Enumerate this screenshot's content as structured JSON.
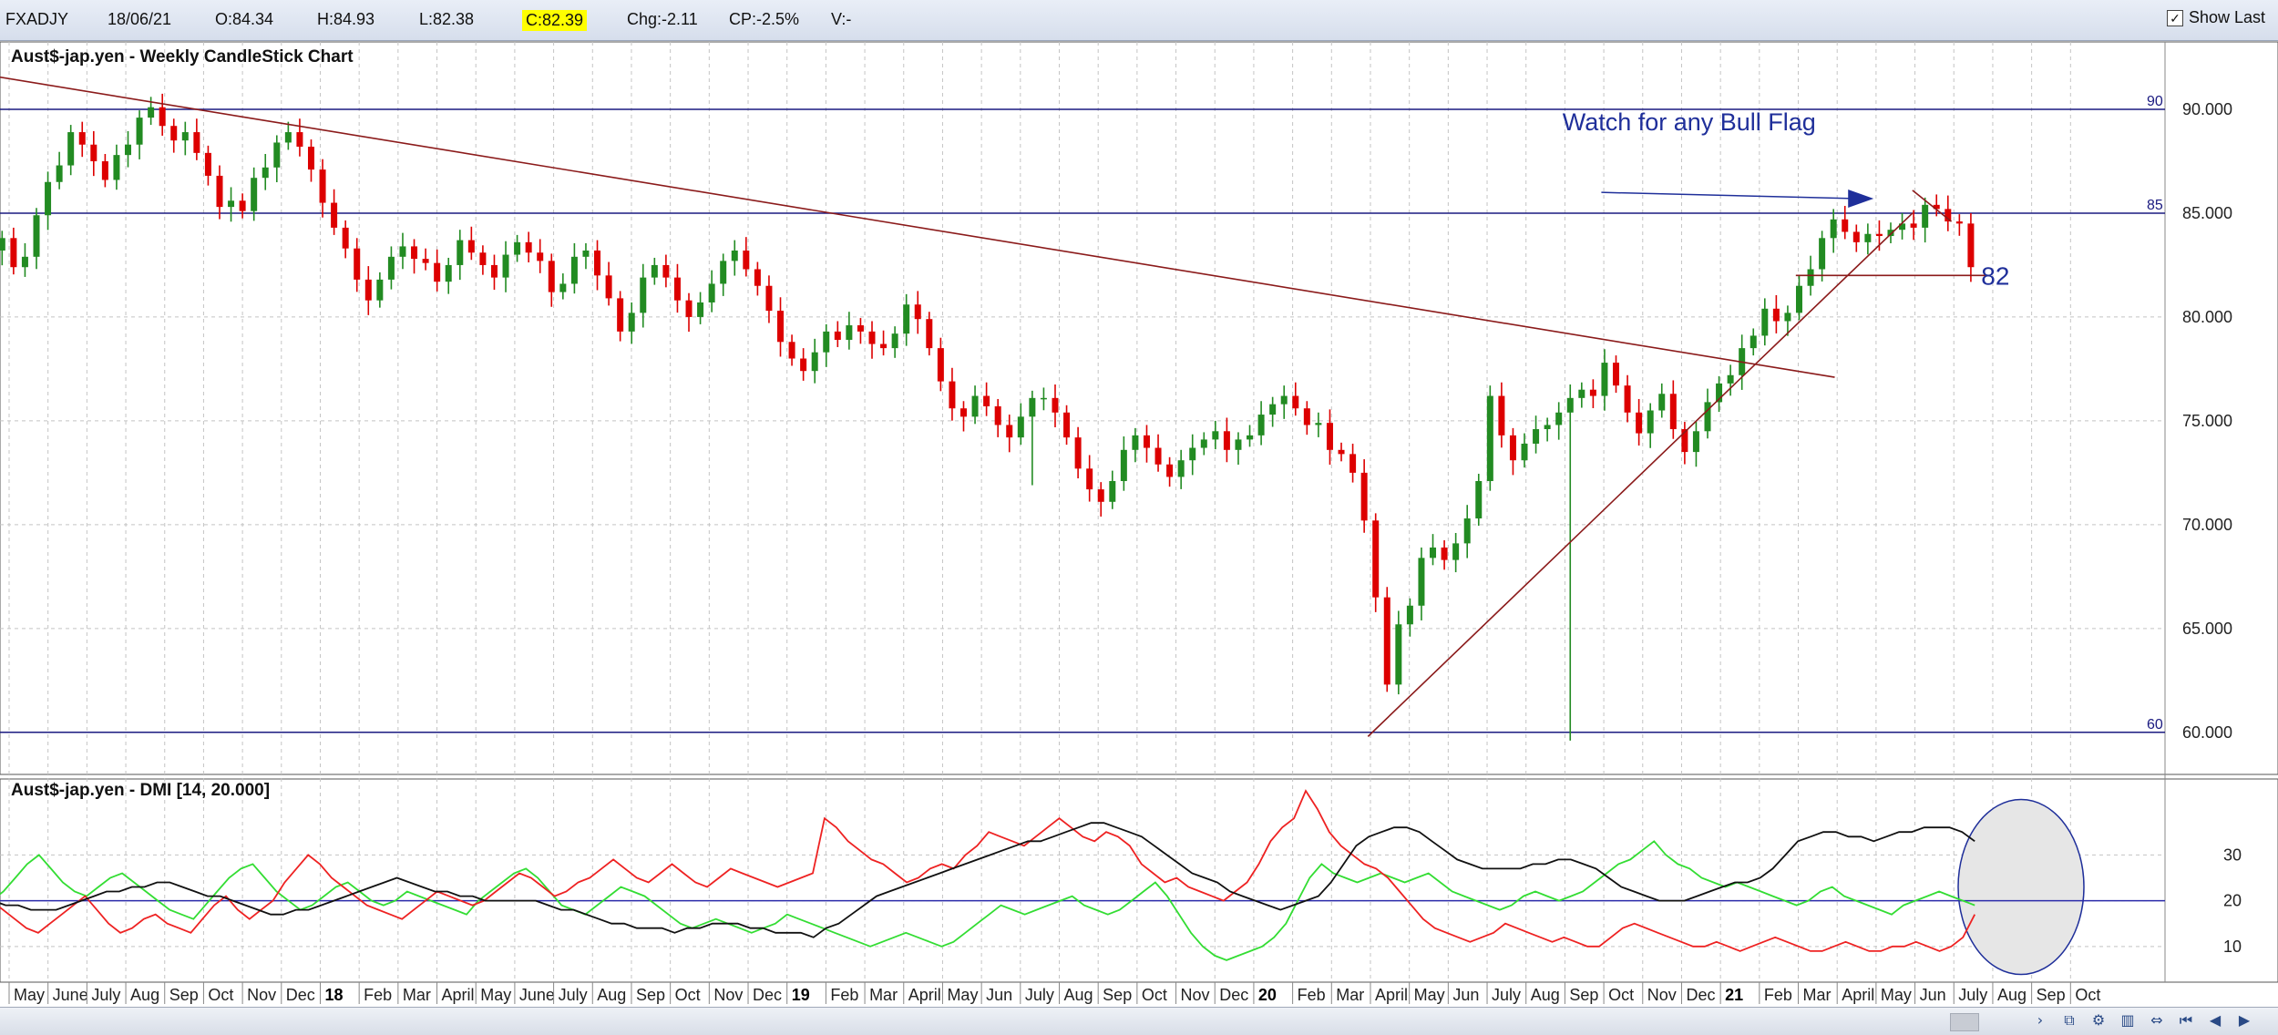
{
  "toolbar": {
    "symbol": "FXADJY",
    "date": "18/06/21",
    "open": "O:84.34",
    "high": "H:84.93",
    "low": "L:82.38",
    "close": "C:82.39",
    "change": "Chg:-2.11",
    "change_pct": "CP:-2.5%",
    "volume": "V:-",
    "show_last_label": "Show Last",
    "show_last_checked": true,
    "highlight_color": "#ffff00"
  },
  "chart_data": [
    {
      "type": "candlestick",
      "title": "Aust$-jap.yen - Weekly CandleStick Chart",
      "ylim": [
        58.5,
        92.5
      ],
      "y_ticks": [
        "60.000",
        "65.000",
        "70.000",
        "75.000",
        "80.000",
        "85.000",
        "90.000"
      ],
      "x_ticks": [
        {
          "label": "May",
          "date": "2017-05"
        },
        {
          "label": "June",
          "date": "2017-06"
        },
        {
          "label": "July",
          "date": "2017-07"
        },
        {
          "label": "Aug",
          "date": "2017-08"
        },
        {
          "label": "Sep",
          "date": "2017-09"
        },
        {
          "label": "Oct",
          "date": "2017-10"
        },
        {
          "label": "Nov",
          "date": "2017-11"
        },
        {
          "label": "Dec",
          "date": "2017-12"
        },
        {
          "label": "18",
          "date": "2018-01",
          "bold": true
        },
        {
          "label": "Feb",
          "date": "2018-02"
        },
        {
          "label": "Mar",
          "date": "2018-03"
        },
        {
          "label": "April",
          "date": "2018-04"
        },
        {
          "label": "May",
          "date": "2018-05"
        },
        {
          "label": "June",
          "date": "2018-06"
        },
        {
          "label": "July",
          "date": "2018-07"
        },
        {
          "label": "Aug",
          "date": "2018-08"
        },
        {
          "label": "Sep",
          "date": "2018-09"
        },
        {
          "label": "Oct",
          "date": "2018-10"
        },
        {
          "label": "Nov",
          "date": "2018-11"
        },
        {
          "label": "Dec",
          "date": "2018-12"
        },
        {
          "label": "19",
          "date": "2019-01",
          "bold": true
        },
        {
          "label": "Feb",
          "date": "2019-02"
        },
        {
          "label": "Mar",
          "date": "2019-03"
        },
        {
          "label": "April",
          "date": "2019-04"
        },
        {
          "label": "May",
          "date": "2019-05"
        },
        {
          "label": "Jun",
          "date": "2019-06"
        },
        {
          "label": "July",
          "date": "2019-07"
        },
        {
          "label": "Aug",
          "date": "2019-08"
        },
        {
          "label": "Sep",
          "date": "2019-09"
        },
        {
          "label": "Oct",
          "date": "2019-10"
        },
        {
          "label": "Nov",
          "date": "2019-11"
        },
        {
          "label": "Dec",
          "date": "2019-12"
        },
        {
          "label": "20",
          "date": "2020-01",
          "bold": true
        },
        {
          "label": "Feb",
          "date": "2020-02"
        },
        {
          "label": "Mar",
          "date": "2020-03"
        },
        {
          "label": "April",
          "date": "2020-04"
        },
        {
          "label": "May",
          "date": "2020-05"
        },
        {
          "label": "Jun",
          "date": "2020-06"
        },
        {
          "label": "July",
          "date": "2020-07"
        },
        {
          "label": "Aug",
          "date": "2020-08"
        },
        {
          "label": "Sep",
          "date": "2020-09"
        },
        {
          "label": "Oct",
          "date": "2020-10"
        },
        {
          "label": "Nov",
          "date": "2020-11"
        },
        {
          "label": "Dec",
          "date": "2020-12"
        },
        {
          "label": "21",
          "date": "2021-01",
          "bold": true
        },
        {
          "label": "Feb",
          "date": "2021-02"
        },
        {
          "label": "Mar",
          "date": "2021-03"
        },
        {
          "label": "April",
          "date": "2021-04"
        },
        {
          "label": "May",
          "date": "2021-05"
        },
        {
          "label": "Jun",
          "date": "2021-06"
        },
        {
          "label": "July",
          "date": "2021-07"
        },
        {
          "label": "Aug",
          "date": "2021-08"
        },
        {
          "label": "Sep",
          "date": "2021-09"
        },
        {
          "label": "Oct",
          "date": "2021-10"
        }
      ],
      "up_color": "#228b22",
      "down_color": "#dd0000",
      "closes": [
        82.6,
        83.5,
        83.2,
        83.8,
        82.4,
        82.9,
        84.9,
        86.5,
        87.3,
        88.9,
        88.3,
        87.5,
        86.6,
        87.8,
        88.3,
        89.6,
        90.1,
        89.2,
        88.5,
        88.9,
        87.9,
        86.8,
        85.3,
        85.6,
        85.1,
        86.7,
        87.2,
        88.4,
        88.9,
        88.2,
        87.1,
        85.5,
        84.3,
        83.3,
        81.8,
        80.8,
        81.8,
        82.9,
        83.4,
        82.8,
        82.6,
        81.7,
        82.5,
        83.7,
        83.1,
        82.5,
        81.9,
        83.0,
        83.6,
        83.1,
        82.7,
        81.2,
        81.6,
        82.9,
        83.2,
        82.0,
        80.9,
        79.3,
        80.2,
        81.9,
        82.5,
        81.9,
        80.8,
        80.0,
        80.7,
        81.6,
        82.7,
        83.2,
        82.3,
        81.5,
        80.3,
        78.8,
        78.0,
        77.4,
        78.3,
        79.3,
        78.9,
        79.6,
        79.3,
        78.7,
        78.5,
        79.2,
        80.6,
        79.9,
        78.5,
        76.9,
        75.6,
        75.2,
        76.2,
        75.7,
        74.8,
        74.2,
        75.2,
        76.1,
        76.1,
        75.4,
        74.2,
        72.7,
        71.7,
        71.1,
        72.1,
        73.6,
        74.3,
        73.7,
        72.9,
        72.3,
        73.1,
        73.7,
        74.1,
        74.5,
        73.6,
        74.1,
        74.3,
        75.3,
        75.8,
        76.2,
        75.6,
        74.8,
        74.9,
        73.6,
        73.4,
        72.5,
        70.2,
        66.5,
        62.3,
        65.2,
        66.1,
        68.4,
        68.9,
        68.3,
        69.1,
        70.3,
        72.1,
        76.2,
        74.3,
        73.1,
        73.9,
        74.6,
        74.8,
        75.4,
        76.1,
        76.5,
        76.2,
        77.8,
        76.7,
        75.4,
        74.4,
        75.5,
        76.3,
        74.6,
        73.5,
        74.5,
        75.9,
        76.8,
        77.2,
        78.5,
        79.1,
        80.4,
        79.8,
        80.2,
        81.5,
        82.3,
        83.8,
        84.7,
        84.1,
        83.6,
        84.0,
        83.9,
        84.2,
        84.5,
        84.3,
        85.4,
        85.2,
        84.6,
        84.5,
        82.4
      ],
      "dashed_line_color": "#8b1a1a",
      "lines": [
        {
          "name": "downtrend",
          "points": [
            [
              "2017-03",
              91.8
            ],
            [
              "2021-03",
              77.1
            ]
          ],
          "color": "#8b1a1a"
        },
        {
          "name": "uptrend",
          "points": [
            [
              "2020-03",
              59.8
            ],
            [
              "2021-05",
              85.0
            ]
          ],
          "color": "#8b1a1a"
        },
        {
          "name": "flag-top",
          "points": [
            [
              "2021-05",
              86.1
            ],
            [
              "2021-06",
              84.6
            ]
          ],
          "color": "#8b1a1a"
        },
        {
          "name": "support-82",
          "points": [
            [
              "2021-02",
              82.0
            ],
            [
              "2021-07",
              82.0
            ]
          ],
          "color": "#8b1a1a"
        }
      ],
      "hlines": [
        {
          "value": 90,
          "label": "90",
          "color": "#1a1a80"
        },
        {
          "value": 85,
          "label": "85",
          "color": "#1a1a80"
        },
        {
          "value": 60,
          "label": "60",
          "color": "#1a1a80"
        }
      ],
      "annotations": [
        {
          "text": "Watch for any Bull Flag",
          "at": [
            "2020-08",
            89.0
          ],
          "color": "#1f2f9a"
        },
        {
          "text": "82",
          "at": [
            "2021-07",
            82.0
          ],
          "color": "#1f2f9a"
        }
      ],
      "arrow": {
        "from": [
          "2020-09",
          86.0
        ],
        "to": [
          "2021-04",
          85.7
        ],
        "color": "#1f2f9a"
      }
    },
    {
      "type": "line",
      "title": "Aust$-jap.yen - DMI [14, 20.000]",
      "ylim": [
        3,
        45
      ],
      "y_ticks": [
        "10",
        "20",
        "30"
      ],
      "reference_line": {
        "value": 20,
        "color": "#2a2aaa"
      },
      "series": [
        {
          "name": "+DI",
          "color": "#33dd33"
        },
        {
          "name": "-DI",
          "color": "#ee2222"
        },
        {
          "name": "ADX",
          "color": "#111111"
        }
      ],
      "plus_di": [
        18,
        17,
        20,
        22,
        25,
        28,
        30,
        27,
        24,
        22,
        21,
        23,
        25,
        26,
        24,
        22,
        20,
        18,
        17,
        16,
        19,
        22,
        25,
        27,
        28,
        25,
        22,
        20,
        18,
        19,
        21,
        23,
        24,
        22,
        20,
        19,
        20,
        22,
        21,
        20,
        19,
        18,
        17,
        20,
        22,
        24,
        26,
        27,
        25,
        22,
        19,
        18,
        17,
        19,
        21,
        23,
        22,
        21,
        19,
        17,
        15,
        14,
        15,
        16,
        15,
        14,
        13,
        14,
        15,
        17,
        16,
        15,
        14,
        13,
        12,
        11,
        10,
        11,
        12,
        13,
        12,
        11,
        10,
        11,
        13,
        15,
        17,
        19,
        18,
        17,
        18,
        19,
        20,
        21,
        19,
        18,
        17,
        18,
        20,
        22,
        24,
        21,
        17,
        13,
        10,
        8,
        7,
        8,
        9,
        10,
        12,
        15,
        20,
        25,
        28,
        26,
        25,
        24,
        25,
        26,
        25,
        24,
        25,
        26,
        24,
        22,
        21,
        20,
        19,
        18,
        19,
        21,
        22,
        21,
        20,
        21,
        22,
        24,
        26,
        28,
        29,
        31,
        33,
        30,
        28,
        27,
        25,
        24,
        23,
        24,
        23,
        22,
        21,
        20,
        19,
        20,
        22,
        23,
        21,
        20,
        19,
        18,
        17,
        19,
        20,
        21,
        22,
        21,
        20,
        19
      ],
      "minus_di": [
        19,
        21,
        20,
        18,
        16,
        14,
        13,
        15,
        17,
        19,
        21,
        18,
        15,
        13,
        14,
        16,
        17,
        15,
        14,
        13,
        16,
        19,
        21,
        18,
        16,
        18,
        20,
        24,
        27,
        30,
        28,
        25,
        23,
        21,
        19,
        18,
        17,
        16,
        18,
        20,
        22,
        21,
        20,
        19,
        20,
        22,
        24,
        26,
        25,
        23,
        21,
        22,
        24,
        25,
        27,
        29,
        27,
        25,
        24,
        26,
        28,
        26,
        24,
        23,
        25,
        27,
        26,
        25,
        24,
        23,
        24,
        25,
        26,
        38,
        36,
        33,
        31,
        29,
        28,
        26,
        24,
        25,
        27,
        28,
        27,
        30,
        32,
        35,
        34,
        33,
        32,
        34,
        36,
        38,
        36,
        34,
        33,
        35,
        34,
        32,
        28,
        26,
        24,
        25,
        23,
        22,
        21,
        20,
        22,
        24,
        28,
        33,
        36,
        38,
        44,
        40,
        35,
        32,
        30,
        28,
        27,
        25,
        22,
        19,
        16,
        14,
        13,
        12,
        11,
        12,
        13,
        15,
        14,
        13,
        12,
        11,
        12,
        11,
        10,
        10,
        12,
        14,
        15,
        14,
        13,
        12,
        11,
        10,
        10,
        11,
        10,
        9,
        10,
        11,
        12,
        11,
        10,
        9,
        9,
        10,
        11,
        10,
        9,
        9,
        10,
        10,
        11,
        10,
        9,
        10,
        12,
        17
      ],
      "adx": [
        22,
        21,
        20,
        19,
        19,
        18,
        18,
        18,
        19,
        20,
        21,
        22,
        22,
        23,
        23,
        24,
        24,
        23,
        22,
        21,
        21,
        20,
        19,
        18,
        17,
        17,
        18,
        18,
        19,
        20,
        21,
        22,
        23,
        24,
        25,
        24,
        23,
        22,
        22,
        21,
        21,
        20,
        20,
        20,
        20,
        20,
        19,
        18,
        18,
        17,
        16,
        15,
        15,
        14,
        14,
        14,
        13,
        14,
        14,
        15,
        15,
        15,
        14,
        14,
        13,
        13,
        13,
        12,
        14,
        15,
        17,
        19,
        21,
        22,
        23,
        24,
        25,
        26,
        27,
        28,
        29,
        30,
        31,
        32,
        33,
        33,
        34,
        35,
        36,
        37,
        37,
        36,
        35,
        34,
        32,
        30,
        28,
        26,
        25,
        24,
        22,
        21,
        20,
        19,
        18,
        19,
        20,
        21,
        24,
        28,
        32,
        34,
        35,
        36,
        36,
        35,
        33,
        31,
        29,
        28,
        27,
        27,
        27,
        27,
        28,
        28,
        29,
        29,
        28,
        27,
        25,
        23,
        22,
        21,
        20,
        20,
        20,
        21,
        22,
        23,
        24,
        24,
        25,
        27,
        30,
        33,
        34,
        35,
        35,
        34,
        34,
        33,
        34,
        35,
        35,
        36,
        36,
        36,
        35,
        33
      ],
      "ellipse_color": "#1f2f9a",
      "ellipse_fill": "#e6e6e6"
    }
  ],
  "footer": {
    "nav_icons": [
      "scroll-right-icon",
      "zoom-chart-icon",
      "chart-settings-icon",
      "chart-tools-icon",
      "fit-icon",
      "first-icon",
      "prev-icon",
      "next-icon"
    ],
    "nav_glyphs": [
      "›",
      "⧉",
      "⚙",
      "▥",
      "⇔",
      "⏮",
      "◀",
      "▶"
    ]
  }
}
